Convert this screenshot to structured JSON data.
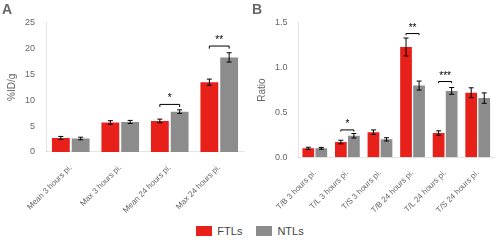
{
  "chart_data": [
    {
      "type": "bar",
      "title": "A",
      "categories": [
        "Mean 3 hours pi.",
        "Max 3 hours pi.",
        "Mean 24 hours pi.",
        "Max 24 hours pi."
      ],
      "series": [
        {
          "name": "FTLs",
          "color": "#e8201a",
          "values": [
            2.7,
            5.7,
            6.0,
            13.5
          ],
          "errors": [
            0.3,
            0.35,
            0.35,
            0.6
          ]
        },
        {
          "name": "NTLs",
          "color": "#8c8c8c",
          "values": [
            2.6,
            5.8,
            7.8,
            18.3
          ],
          "errors": [
            0.25,
            0.3,
            0.35,
            0.9
          ]
        }
      ],
      "y_label": "%ID/g",
      "ylim": [
        0,
        25
      ],
      "yticks": [
        0,
        5,
        10,
        15,
        20,
        25
      ],
      "annotations": [
        {
          "category": "Mean 24 hours pi.",
          "label": "*",
          "y": 9.2,
          "dy": 0.5
        },
        {
          "category": "Max 24 hours pi.",
          "label": "**",
          "y": 20.5,
          "dy": 0.5
        }
      ],
      "grid": false,
      "legend": "bottom"
    },
    {
      "type": "bar",
      "title": "B",
      "categories": [
        "T/B 3 hours pi.",
        "T/L 3 hours pi.",
        "T/S 3 hours pi.",
        "T/B 24 hours pi.",
        "T/L 24 hours pi.",
        "T/S 24 hours pi."
      ],
      "series": [
        {
          "name": "FTLs",
          "color": "#e8201a",
          "values": [
            0.1,
            0.17,
            0.28,
            1.23,
            0.27,
            0.72
          ],
          "errors": [
            0.012,
            0.02,
            0.025,
            0.1,
            0.025,
            0.055
          ]
        },
        {
          "name": "NTLs",
          "color": "#8c8c8c",
          "values": [
            0.1,
            0.24,
            0.2,
            0.8,
            0.74,
            0.66
          ],
          "errors": [
            0.01,
            0.025,
            0.018,
            0.05,
            0.038,
            0.058
          ]
        }
      ],
      "y_label": "Ratio",
      "ylim": [
        0,
        1.5
      ],
      "yticks": [
        {
          "value": 0,
          "label": "0.0"
        },
        {
          "value": 0.5,
          "label": "0.5"
        },
        {
          "value": 1,
          "label": "1.0"
        },
        {
          "value": 1.5,
          "label": "1.5"
        }
      ],
      "annotations": [
        {
          "category": "T/L 3 hours pi.",
          "label": "*",
          "y": 0.305,
          "dy": 0.018
        },
        {
          "category": "T/B 24 hours pi.",
          "label": "**",
          "y": 1.38,
          "dy": 0.018
        },
        {
          "category": "T/L 24 hours pi.",
          "label": "***",
          "y": 0.845,
          "dy": 0.018
        }
      ],
      "grid": false,
      "legend": "bottom"
    }
  ]
}
